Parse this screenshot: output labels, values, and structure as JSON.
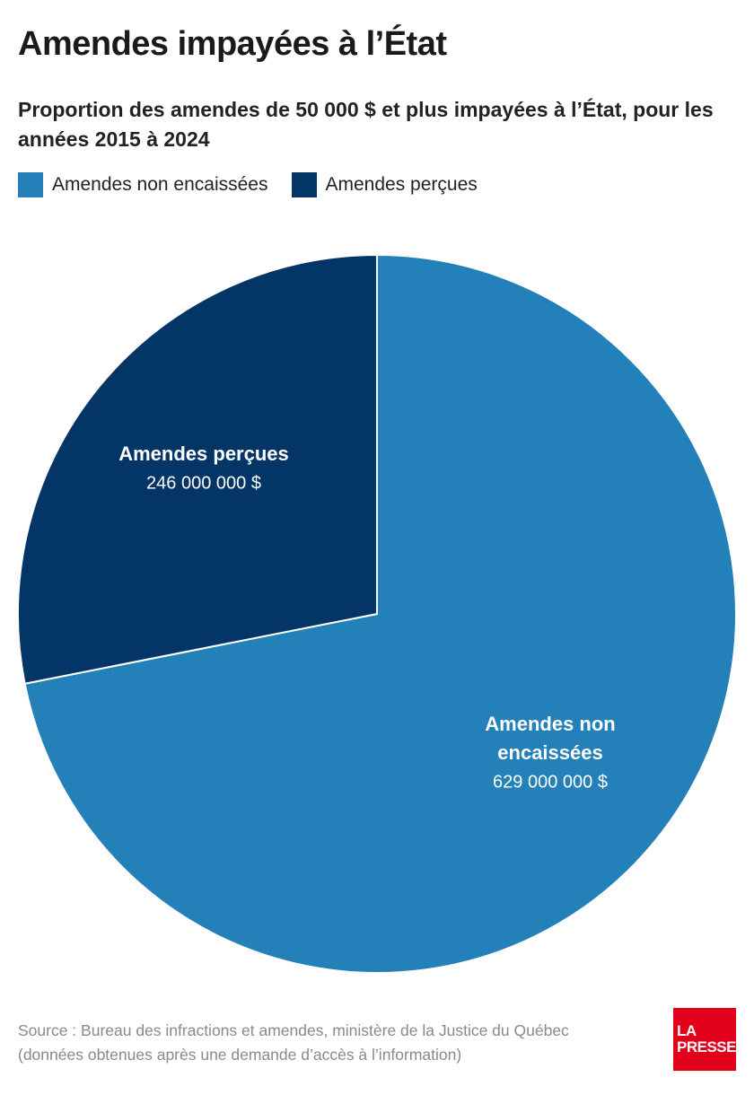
{
  "title": "Amendes impayées à l’État",
  "subtitle": "Proportion des amendes de 50 000 $ et plus impayées à l’État, pour les années 2015 à 2024",
  "legend": [
    {
      "label": "Amendes non encaissées",
      "color": "#2380b8"
    },
    {
      "label": "Amendes perçues",
      "color": "#033567"
    }
  ],
  "chart_data": {
    "type": "pie",
    "slices": [
      {
        "name": "Amendes non encaissées",
        "label_lines": [
          "Amendes non",
          "encaissées"
        ],
        "value": 629000000,
        "value_label": "629 000 000 $",
        "color": "#2380b8"
      },
      {
        "name": "Amendes perçues",
        "label_lines": [
          "Amendes perçues"
        ],
        "value": 246000000,
        "value_label": "246 000 000 $",
        "color": "#033567"
      }
    ],
    "start": "12 o'clock",
    "direction": "clockwise",
    "legend_position": "top-left"
  },
  "source": {
    "line1": "Source : Bureau des infractions et amendes, ministère de la Justice du Québec",
    "line2": "(données obtenues après une demande d’accès à l’information)"
  },
  "logo": {
    "line1": "LA",
    "line2": "PRESSE"
  }
}
